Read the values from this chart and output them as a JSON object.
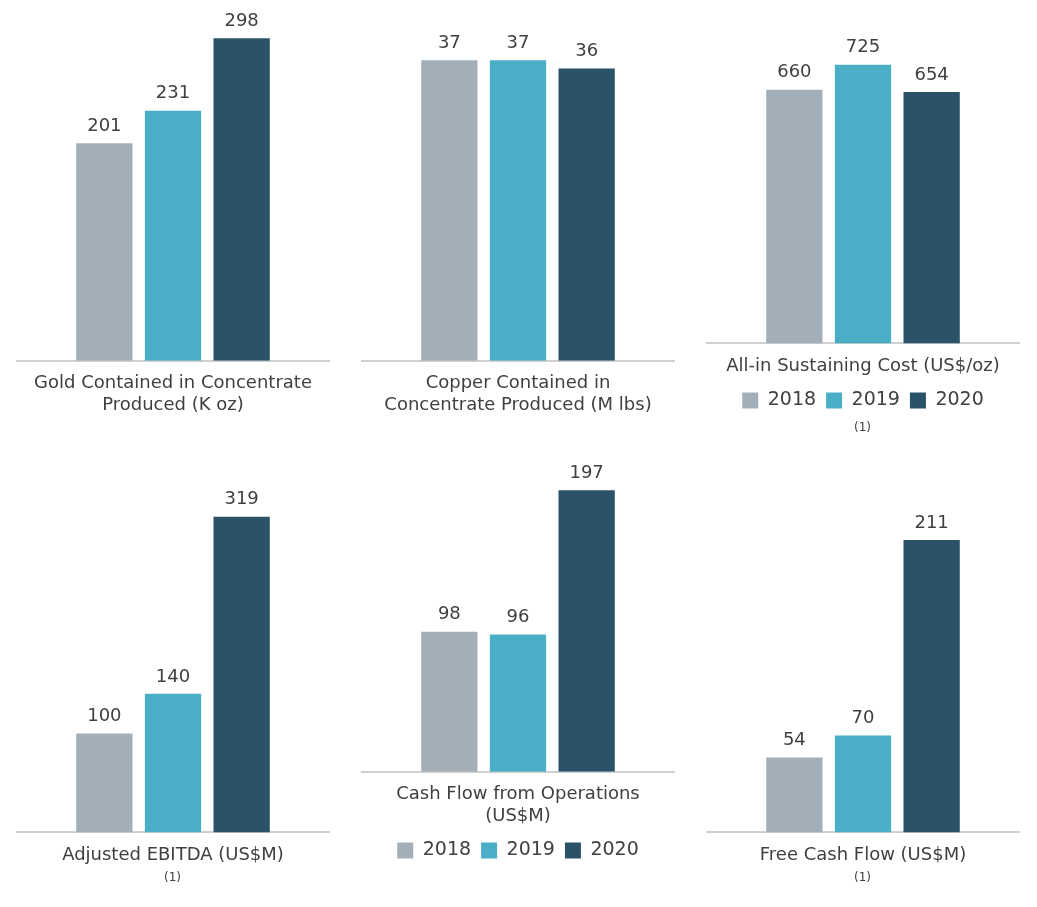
{
  "chart_data": [
    {
      "type": "bar",
      "xlabel": "Gold Contained in Concentrate Produced (K oz)",
      "categories": [
        null
      ],
      "data_labels": true,
      "series": [
        {
          "color": "#a3afb8",
          "values": [
            201
          ]
        },
        {
          "color": "#4aaec7",
          "values": [
            231
          ]
        },
        {
          "color": "#2a5369",
          "values": [
            298
          ]
        }
      ]
    },
    {
      "type": "bar",
      "xlabel": "Copper Contained in Concentrate Produced (M lbs)",
      "categories": [
        null
      ],
      "data_labels": true,
      "series": [
        {
          "color": "#a3afb8",
          "values": [
            37
          ]
        },
        {
          "color": "#4aaec7",
          "values": [
            37
          ]
        },
        {
          "color": "#2a5369",
          "values": [
            36
          ]
        }
      ]
    },
    {
      "type": "bar",
      "xlabel": "All-in Sustaining Cost (US$/oz)",
      "annotations": [
        "(1)"
      ],
      "categories": [
        null
      ],
      "data_labels": true,
      "legend": "bottom",
      "series": [
        {
          "name": "2018",
          "color": "#a3afb8",
          "values": [
            660
          ]
        },
        {
          "name": "2019",
          "color": "#4aaec7",
          "values": [
            725
          ]
        },
        {
          "name": "2020",
          "color": "#2a5369",
          "values": [
            654
          ]
        }
      ]
    },
    {
      "type": "bar",
      "xlabel": "Adjusted EBITDA (US$M)",
      "annotations": [
        "(1)"
      ],
      "categories": [
        null
      ],
      "data_labels": true,
      "series": [
        {
          "color": "#a3afb8",
          "values": [
            100
          ]
        },
        {
          "color": "#4aaec7",
          "values": [
            140
          ]
        },
        {
          "color": "#2a5369",
          "values": [
            319
          ]
        }
      ]
    },
    {
      "type": "bar",
      "xlabel": "Cash Flow from Operations (US$M)",
      "categories": [
        null
      ],
      "data_labels": true,
      "legend": "bottom",
      "series": [
        {
          "name": "2018",
          "color": "#a3afb8",
          "values": [
            98
          ]
        },
        {
          "name": "2019",
          "color": "#4aaec7",
          "values": [
            96
          ]
        },
        {
          "name": "2020",
          "color": "#2a5369",
          "values": [
            197
          ]
        }
      ]
    },
    {
      "type": "bar",
      "xlabel": "Free Cash Flow (US$M)",
      "annotations": [
        "(1)"
      ],
      "categories": [
        null
      ],
      "data_labels": true,
      "series": [
        {
          "color": "#a3afb8",
          "values": [
            54
          ]
        },
        {
          "color": "#4aaec7",
          "values": [
            70
          ]
        },
        {
          "color": "#2a5369",
          "values": [
            211
          ]
        }
      ]
    }
  ]
}
